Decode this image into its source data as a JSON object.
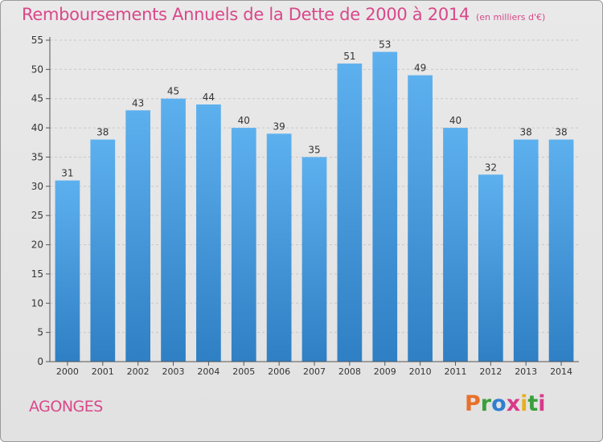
{
  "title": "Remboursements Annuels de la Dette de 2000 à 2014",
  "subtitle": "(en milliers d'€)",
  "commune": "AGONGES",
  "logo": {
    "letters": [
      "P",
      "r",
      "o",
      "x",
      "i",
      "t",
      "i"
    ],
    "colors": [
      "#e8702a",
      "#3aa03a",
      "#2f7fd0",
      "#d83a8a",
      "#e8b020",
      "#3aa03a",
      "#d83a8a"
    ]
  },
  "chart_data": {
    "type": "bar",
    "title": "Remboursements Annuels de la Dette de 2000 à 2014",
    "xlabel": "",
    "ylabel": "en milliers d'€",
    "categories": [
      "2000",
      "2001",
      "2002",
      "2003",
      "2004",
      "2005",
      "2006",
      "2007",
      "2008",
      "2009",
      "2010",
      "2011",
      "2012",
      "2013",
      "2014"
    ],
    "values": [
      31,
      38,
      43,
      45,
      44,
      40,
      39,
      35,
      51,
      53,
      49,
      40,
      32,
      38,
      38
    ],
    "ylim": [
      0,
      55
    ],
    "yticks": [
      0,
      5,
      10,
      15,
      20,
      25,
      30,
      35,
      40,
      45,
      50,
      55
    ],
    "grid": true,
    "bar_color": "#3d8fd6"
  }
}
